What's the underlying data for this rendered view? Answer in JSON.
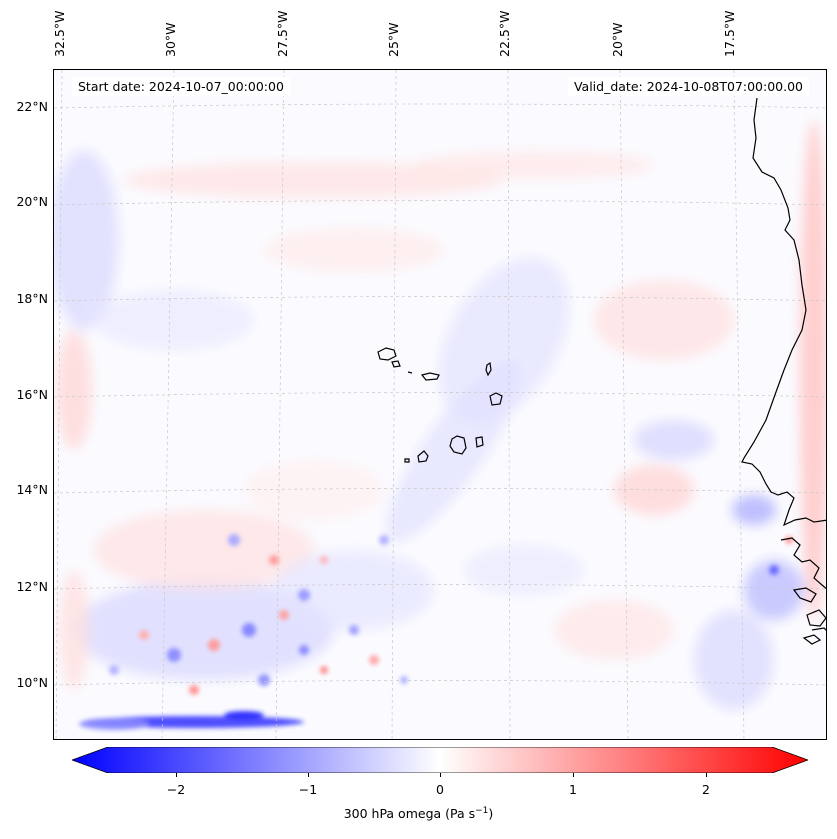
{
  "map": {
    "lon_labels": [
      "32.5°W",
      "30°W",
      "27.5°W",
      "25°W",
      "22.5°W",
      "20°W",
      "17.5°W"
    ],
    "lat_labels": [
      "22°N",
      "20°N",
      "18°N",
      "16°N",
      "14°N",
      "12°N",
      "10°N"
    ],
    "start_date": "Start date: 2024-10-07_00:00:00",
    "valid_date": "Valid_date: 2024-10-08T07:00:00.00",
    "field": "300 hPa omega",
    "colors": {
      "negative": "#0000ff",
      "zero": "#ffffff",
      "positive": "#ff0000",
      "coast": "#000000"
    }
  },
  "colorbar": {
    "ticks": [
      "−2",
      "−1",
      "0",
      "1",
      "2"
    ],
    "tick_values": [
      -2,
      -1,
      0,
      1,
      2
    ],
    "range": [
      -2.5,
      2.5
    ],
    "label_main": "300 hPa omega (Pa s",
    "label_sup": "−1",
    "label_end": ")"
  }
}
